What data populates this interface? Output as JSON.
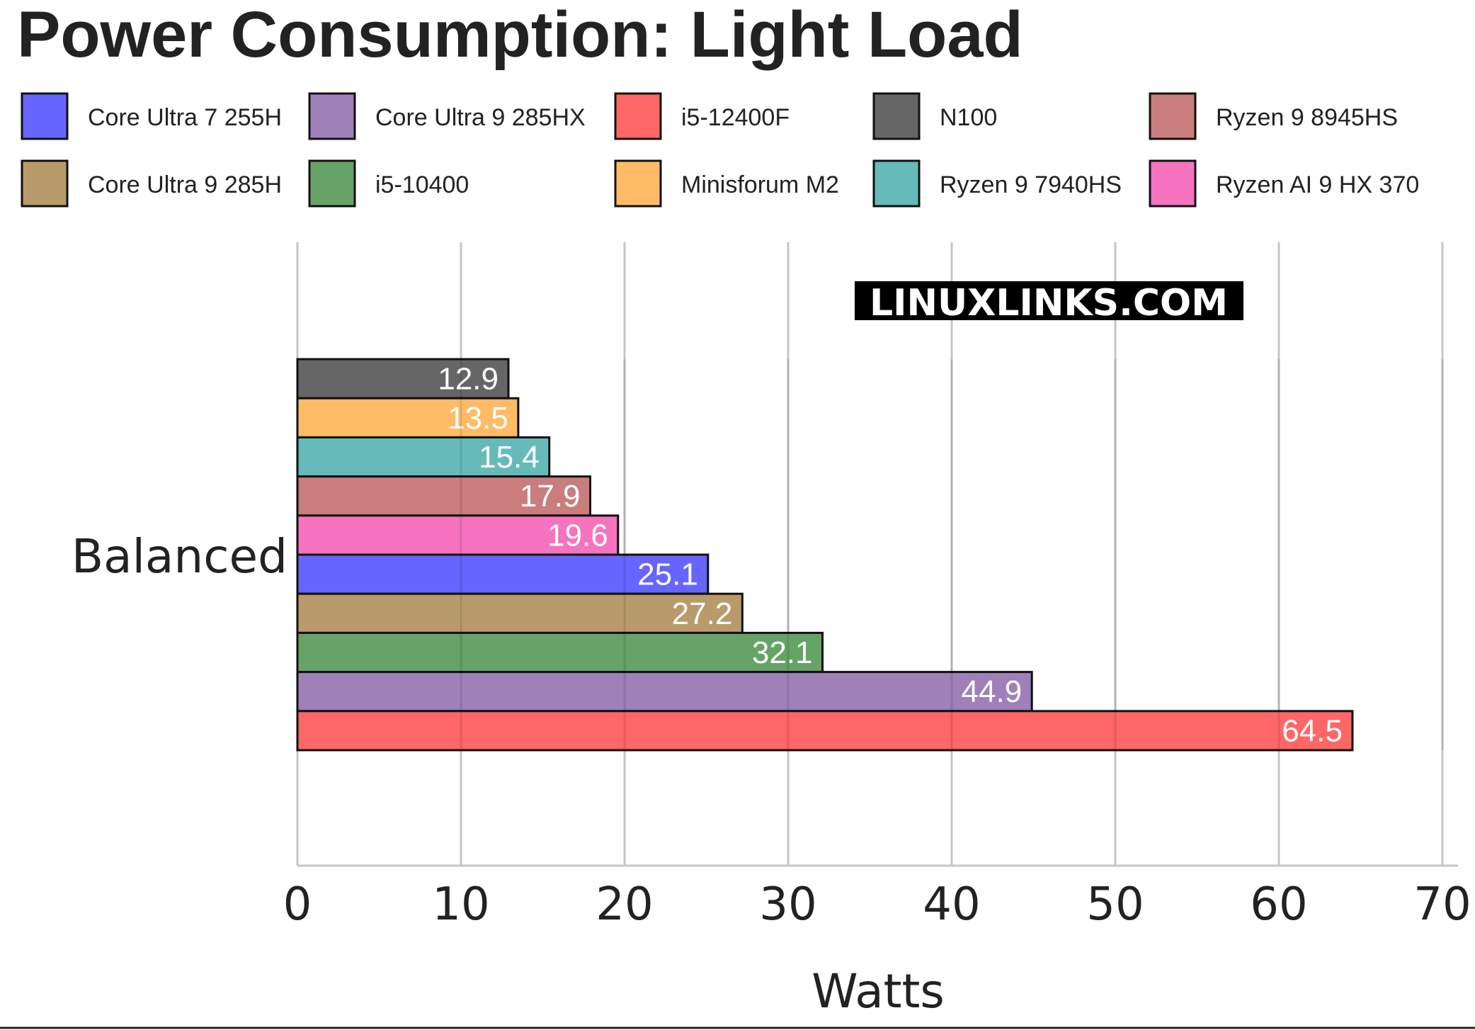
{
  "chart_data": {
    "type": "bar",
    "orientation": "horizontal",
    "title": "Power Consumption: Light Load",
    "xlabel": "Watts",
    "ylabel": "",
    "xlim": [
      0,
      70
    ],
    "xticks": [
      0,
      10,
      20,
      30,
      40,
      50,
      60,
      70
    ],
    "grid": true,
    "legend_position": "top",
    "categories": [
      "Balanced"
    ],
    "watermark": "LINUXLINKS.COM",
    "legend": [
      {
        "name": "Core Ultra 7 255H",
        "color": "#6666ff"
      },
      {
        "name": "Core Ultra 9 285HX",
        "color": "#9f80b8"
      },
      {
        "name": "i5-12400F",
        "color": "#ff6666"
      },
      {
        "name": "N100",
        "color": "#666666"
      },
      {
        "name": "Ryzen 9 8945HS",
        "color": "#c97d7d"
      },
      {
        "name": "Core Ultra 9 285H",
        "color": "#b99b6b"
      },
      {
        "name": "i5-10400",
        "color": "#66a366"
      },
      {
        "name": "Minisforum M2",
        "color": "#ffbb66"
      },
      {
        "name": "Ryzen 9 7940HS",
        "color": "#66baba"
      },
      {
        "name": "Ryzen AI 9 HX 370",
        "color": "#f573bf"
      }
    ],
    "series": [
      {
        "name": "N100",
        "values": [
          12.9
        ],
        "label": "12.9",
        "color": "#666666"
      },
      {
        "name": "Minisforum M2",
        "values": [
          13.5
        ],
        "label": "13.5",
        "color": "#ffbb66"
      },
      {
        "name": "Ryzen 9 7940HS",
        "values": [
          15.4
        ],
        "label": "15.4",
        "color": "#66baba"
      },
      {
        "name": "Ryzen 9 8945HS",
        "values": [
          17.9
        ],
        "label": "17.9",
        "color": "#c97d7d"
      },
      {
        "name": "Ryzen AI 9 HX 370",
        "values": [
          19.6
        ],
        "label": "19.6",
        "color": "#f573bf"
      },
      {
        "name": "Core Ultra 7 255H",
        "values": [
          25.1
        ],
        "label": "25.1",
        "color": "#6666ff"
      },
      {
        "name": "Core Ultra 9 285H",
        "values": [
          27.2
        ],
        "label": "27.2",
        "color": "#b99b6b"
      },
      {
        "name": "i5-10400",
        "values": [
          32.1
        ],
        "label": "32.1",
        "color": "#66a366"
      },
      {
        "name": "Core Ultra 9 285HX",
        "values": [
          44.9
        ],
        "label": "44.9",
        "color": "#9f80b8"
      },
      {
        "name": "i5-12400F",
        "values": [
          64.5
        ],
        "label": "64.5",
        "color": "#ff6666"
      }
    ]
  }
}
